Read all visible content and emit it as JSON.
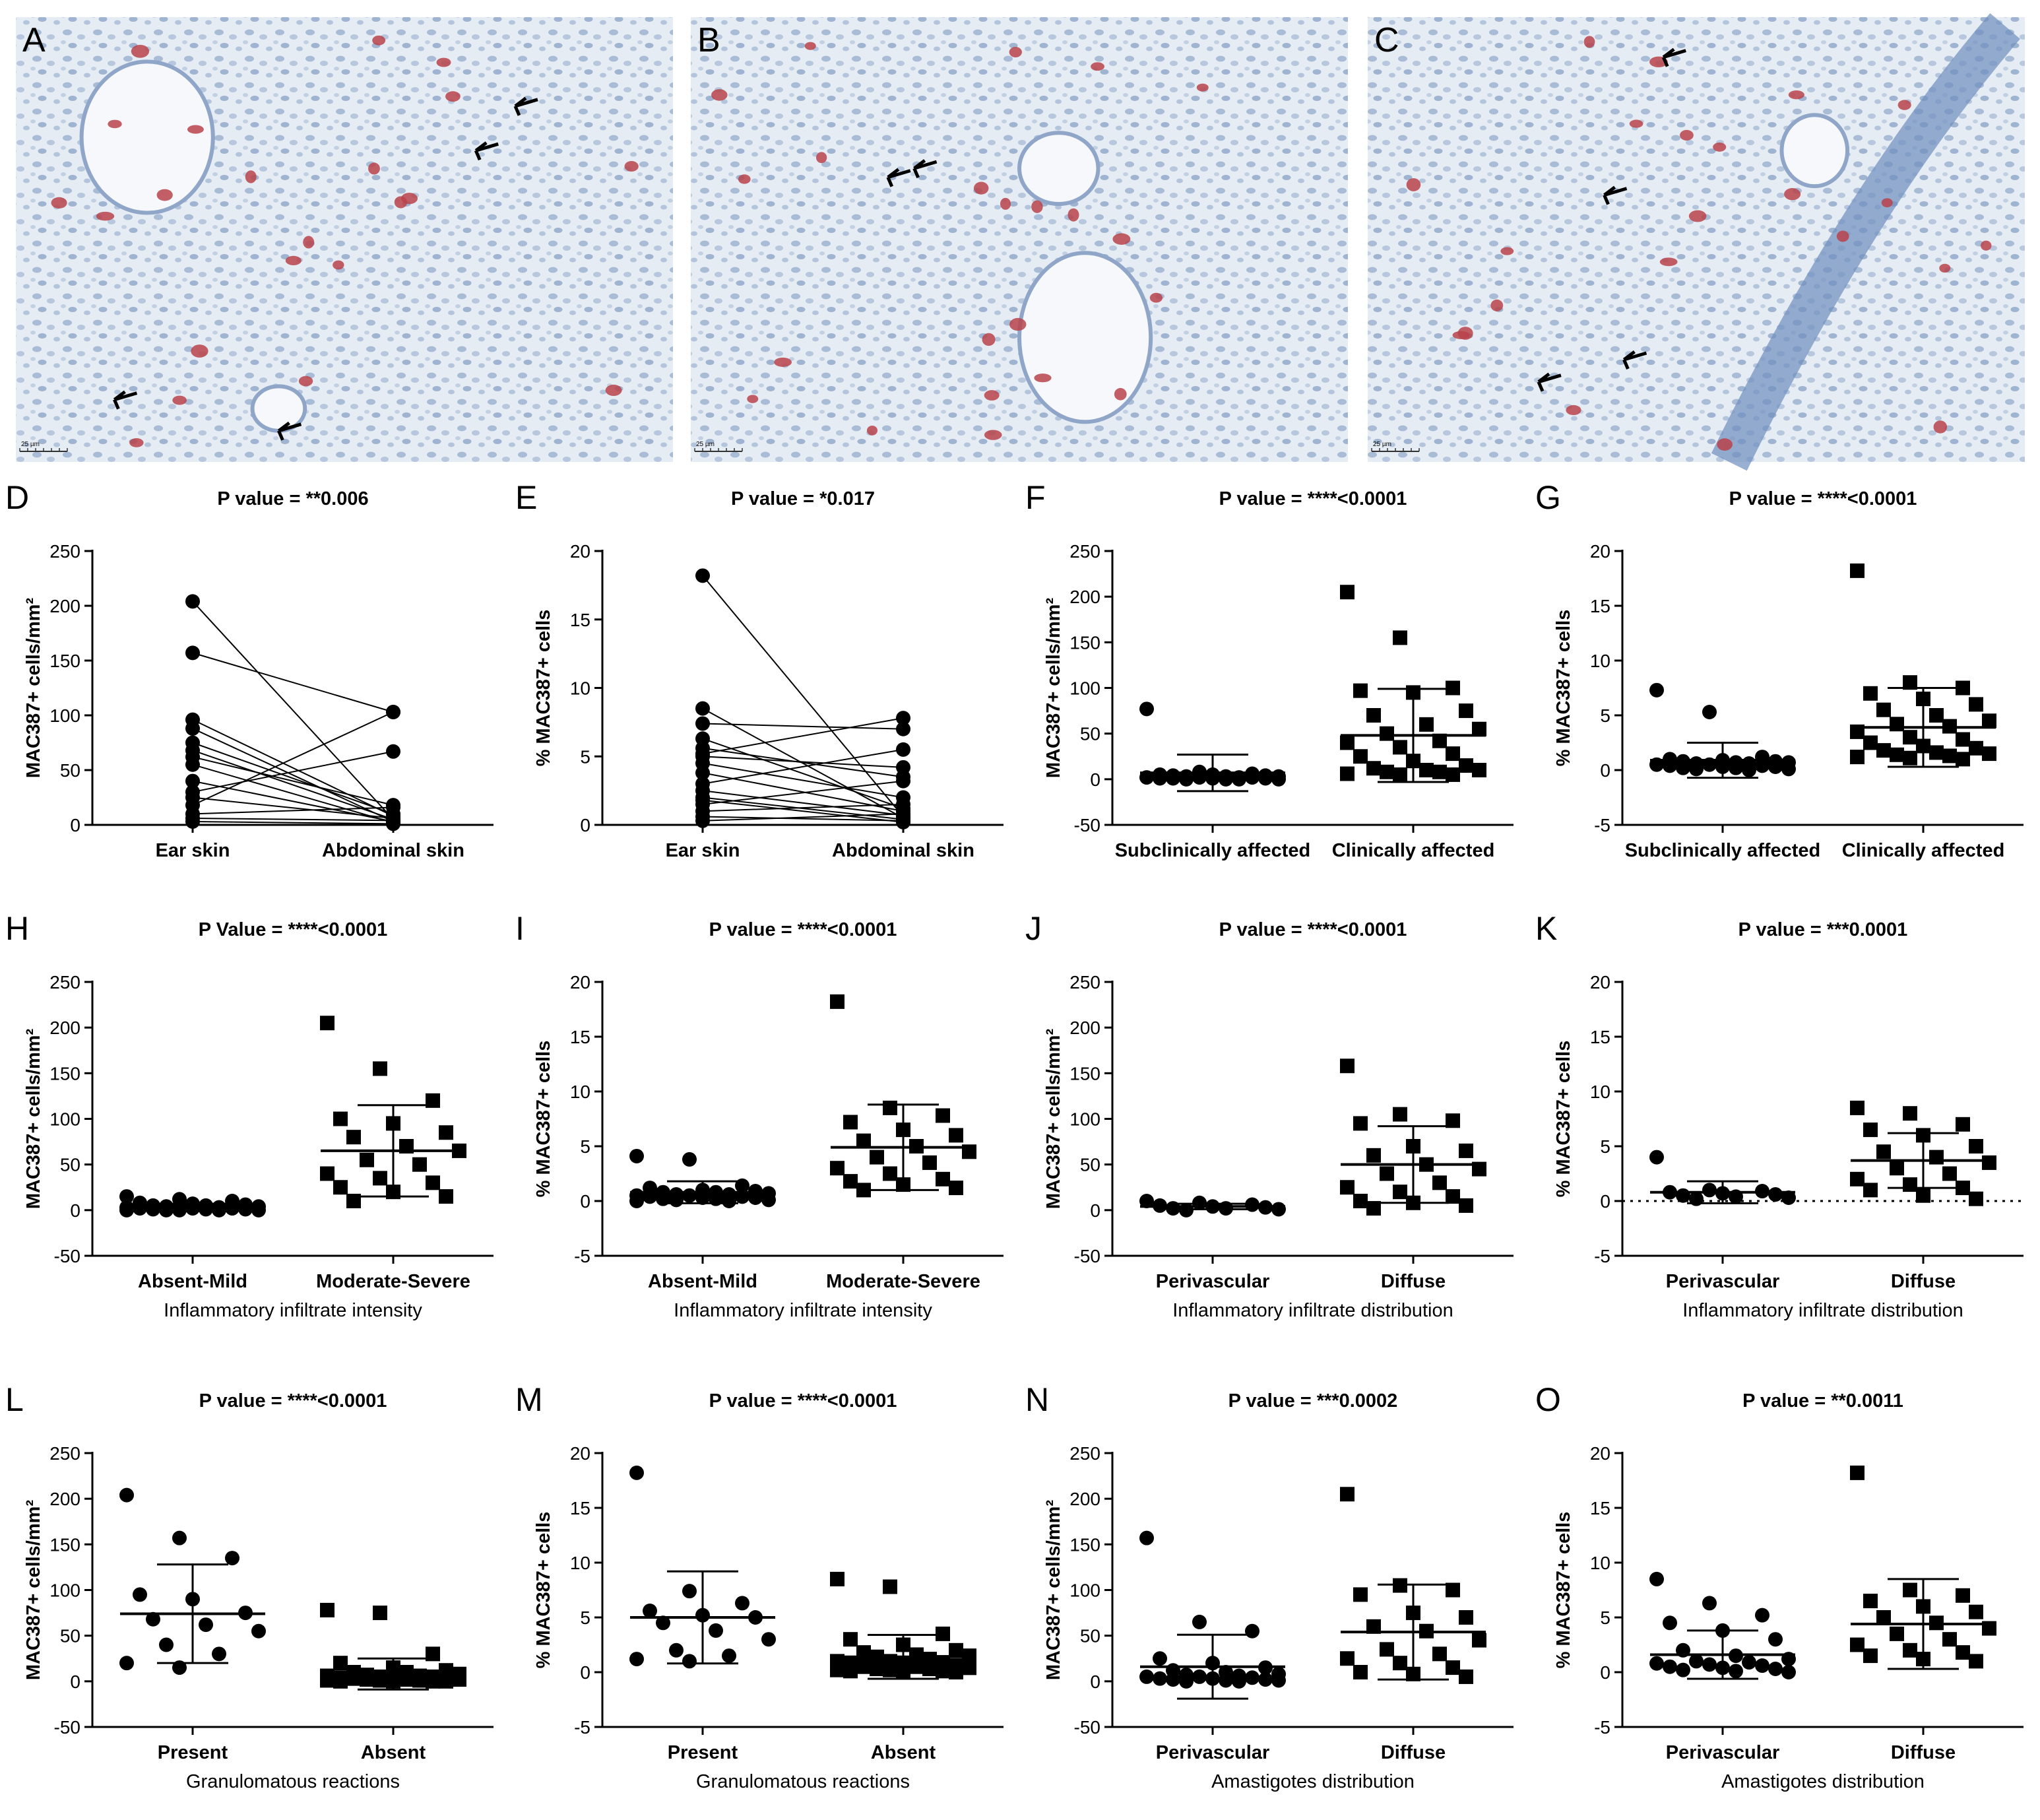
{
  "micrographs": [
    {
      "letter": "A",
      "scalebar": "25 µm"
    },
    {
      "letter": "B",
      "scalebar": "25 µm"
    },
    {
      "letter": "C",
      "scalebar": "25 µm"
    }
  ],
  "colors": {
    "marker": "#000000",
    "stain_red": "#b8434a",
    "tissue_blue": "#a9bcd6",
    "background": "#e9eef5"
  },
  "chart_data": [
    {
      "letter": "D",
      "type": "paired",
      "title": "P value = **0.006",
      "ylabel": "MAC387+ cells/mm²",
      "ylim": [
        0,
        250
      ],
      "yticks": [
        0,
        50,
        100,
        150,
        200,
        250
      ],
      "xlabel": "",
      "categories": [
        "Ear skin",
        "Abdominal skin"
      ],
      "marker": "circle",
      "pairs": [
        [
          204,
          5
        ],
        [
          157,
          103
        ],
        [
          96,
          8
        ],
        [
          88,
          3
        ],
        [
          75,
          10
        ],
        [
          68,
          5
        ],
        [
          62,
          18
        ],
        [
          55,
          2
        ],
        [
          40,
          3
        ],
        [
          30,
          67
        ],
        [
          25,
          6
        ],
        [
          18,
          103
        ],
        [
          10,
          16
        ],
        [
          6,
          4
        ],
        [
          3,
          1
        ]
      ]
    },
    {
      "letter": "E",
      "type": "paired",
      "title": "P value = *0.017",
      "ylabel": "% MAC387+ cells",
      "ylim": [
        0,
        20
      ],
      "yticks": [
        0,
        5,
        10,
        15,
        20
      ],
      "xlabel": "",
      "categories": [
        "Ear skin",
        "Abdominal skin"
      ],
      "marker": "circle",
      "pairs": [
        [
          18.2,
          0.6
        ],
        [
          8.5,
          0.5
        ],
        [
          7.4,
          7.0
        ],
        [
          6.3,
          1.2
        ],
        [
          5.6,
          3.5
        ],
        [
          5.2,
          7.8
        ],
        [
          5.0,
          4.2
        ],
        [
          4.5,
          2.0
        ],
        [
          3.8,
          1.0
        ],
        [
          3.0,
          5.5
        ],
        [
          2.0,
          0.4
        ],
        [
          1.5,
          3.2
        ],
        [
          1.0,
          1.5
        ],
        [
          0.6,
          0.3
        ],
        [
          0.3,
          0.8
        ],
        [
          1.8,
          0.2
        ],
        [
          2.5,
          0.7
        ]
      ]
    },
    {
      "letter": "F",
      "type": "dot",
      "title": "P value = ****<0.0001",
      "ylabel": "MAC387+ cells/mm²",
      "ylim": [
        -50,
        250
      ],
      "yticks": [
        -50,
        0,
        50,
        100,
        150,
        200,
        250
      ],
      "xlabel": "",
      "categories": [
        "Subclinically affected",
        "Clinically affected"
      ],
      "groups": [
        {
          "marker": "circle",
          "mean": 7,
          "sd": 20,
          "values": [
            77,
            8,
            6,
            5,
            5,
            4,
            4,
            3,
            3,
            3,
            2,
            2,
            2,
            2,
            1,
            1,
            1,
            1,
            0,
            0,
            0,
            0
          ]
        },
        {
          "marker": "square",
          "mean": 48,
          "sd": 51,
          "values": [
            205,
            155,
            100,
            97,
            95,
            75,
            70,
            60,
            55,
            50,
            42,
            40,
            35,
            28,
            25,
            20,
            15,
            12,
            10,
            10,
            8,
            8,
            6,
            5,
            5
          ]
        }
      ]
    },
    {
      "letter": "G",
      "type": "dot",
      "title": "P value = ****<0.0001",
      "ylabel": "% MAC387+ cells",
      "ylim": [
        -5,
        20
      ],
      "yticks": [
        -5,
        0,
        5,
        10,
        15,
        20
      ],
      "xlabel": "",
      "categories": [
        "Subclinically affected",
        "Clinically affected"
      ],
      "groups": [
        {
          "marker": "circle",
          "mean": 0.9,
          "sd": 1.6,
          "values": [
            7.3,
            5.3,
            1.2,
            1.0,
            0.9,
            0.8,
            0.8,
            0.7,
            0.7,
            0.6,
            0.6,
            0.5,
            0.5,
            0.4,
            0.4,
            0.3,
            0.3,
            0.2,
            0.2,
            0.1,
            0.1,
            0.0
          ]
        },
        {
          "marker": "square",
          "mean": 3.9,
          "sd": 3.6,
          "values": [
            18.2,
            8.0,
            7.5,
            7.0,
            6.5,
            6.0,
            5.5,
            5.0,
            4.5,
            4.2,
            4.0,
            3.5,
            3.0,
            2.8,
            2.5,
            2.2,
            2.0,
            1.8,
            1.6,
            1.5,
            1.4,
            1.3,
            1.2,
            1.1,
            1.0
          ]
        }
      ]
    },
    {
      "letter": "H",
      "type": "dot",
      "title": "P Value = ****<0.0001",
      "ylabel": "MAC387+ cells/mm²",
      "ylim": [
        -50,
        250
      ],
      "yticks": [
        -50,
        0,
        50,
        100,
        150,
        200,
        250
      ],
      "xlabel": "Inflammatory infiltrate intensity",
      "categories": [
        "Absent-Mild",
        "Moderate-Severe"
      ],
      "groups": [
        {
          "marker": "circle",
          "mean": 3,
          "sd": 4,
          "values": [
            15,
            12,
            10,
            8,
            7,
            6,
            5,
            5,
            4,
            4,
            3,
            3,
            3,
            2,
            2,
            2,
            1,
            1,
            1,
            0,
            0,
            0,
            0,
            0
          ]
        },
        {
          "marker": "square",
          "mean": 65,
          "sd": 50,
          "values": [
            205,
            155,
            120,
            100,
            95,
            85,
            80,
            70,
            65,
            55,
            50,
            40,
            35,
            30,
            25,
            20,
            15,
            10
          ]
        }
      ]
    },
    {
      "letter": "I",
      "type": "dot",
      "title": "P value = ****<0.0001",
      "ylabel": "% MAC387+ cells",
      "ylim": [
        -5,
        20
      ],
      "yticks": [
        -5,
        0,
        5,
        10,
        15,
        20
      ],
      "xlabel": "Inflammatory infiltrate intensity",
      "categories": [
        "Absent-Mild",
        "Moderate-Severe"
      ],
      "groups": [
        {
          "marker": "circle",
          "mean": 0.8,
          "sd": 1.0,
          "values": [
            4.1,
            3.8,
            1.4,
            1.2,
            1.0,
            0.9,
            0.8,
            0.8,
            0.7,
            0.6,
            0.6,
            0.5,
            0.5,
            0.4,
            0.4,
            0.3,
            0.3,
            0.2,
            0.2,
            0.1,
            0.1,
            0.0,
            0.0
          ]
        },
        {
          "marker": "square",
          "mean": 4.9,
          "sd": 3.9,
          "values": [
            18.2,
            8.5,
            7.8,
            7.2,
            6.5,
            6.0,
            5.5,
            5.0,
            4.5,
            4.0,
            3.5,
            3.0,
            2.5,
            2.0,
            1.8,
            1.5,
            1.2,
            1.0
          ]
        }
      ]
    },
    {
      "letter": "J",
      "type": "dot",
      "title": "P value = ****<0.0001",
      "ylabel": "MAC387+ cells/mm²",
      "ylim": [
        -50,
        250
      ],
      "yticks": [
        -50,
        0,
        50,
        100,
        150,
        200,
        250
      ],
      "xlabel": "Inflammatory infiltrate distribution",
      "categories": [
        "Perivascular",
        "Diffuse"
      ],
      "groups": [
        {
          "marker": "circle",
          "mean": 4,
          "sd": 3,
          "values": [
            10,
            8,
            6,
            5,
            4,
            3,
            2,
            2,
            1,
            0
          ]
        },
        {
          "marker": "square",
          "mean": 50,
          "sd": 42,
          "values": [
            158,
            105,
            98,
            95,
            70,
            65,
            60,
            50,
            45,
            40,
            30,
            25,
            20,
            15,
            10,
            8,
            5,
            2
          ]
        }
      ]
    },
    {
      "letter": "K",
      "type": "dot",
      "title": "P value = ***0.0001",
      "ylabel": "% MAC387+ cells",
      "ylim": [
        -5,
        20
      ],
      "yticks": [
        -5,
        0,
        5,
        10,
        15,
        20
      ],
      "xlabel": "Inflammatory infiltrate distribution",
      "categories": [
        "Perivascular",
        "Diffuse"
      ],
      "zero_line": true,
      "groups": [
        {
          "marker": "circle",
          "mean": 0.8,
          "sd": 1.0,
          "values": [
            4.0,
            1.0,
            0.9,
            0.8,
            0.7,
            0.6,
            0.5,
            0.4,
            0.3,
            0.2
          ]
        },
        {
          "marker": "square",
          "mean": 3.7,
          "sd": 2.5,
          "values": [
            8.5,
            8.0,
            7.0,
            6.5,
            6.0,
            5.0,
            4.5,
            4.0,
            3.5,
            3.0,
            2.5,
            2.0,
            1.5,
            1.2,
            1.0,
            0.5,
            0.2
          ]
        }
      ]
    },
    {
      "letter": "L",
      "type": "dot",
      "title": "P value = ****<0.0001",
      "ylabel": "MAC387+ cells/mm²",
      "ylim": [
        -50,
        250
      ],
      "yticks": [
        -50,
        0,
        50,
        100,
        150,
        200,
        250
      ],
      "xlabel": "Granulomatous reactions",
      "categories": [
        "Present",
        "Absent"
      ],
      "groups": [
        {
          "marker": "circle",
          "mean": 74,
          "sd": 54,
          "values": [
            204,
            157,
            135,
            95,
            90,
            75,
            68,
            62,
            55,
            40,
            30,
            20,
            15
          ]
        },
        {
          "marker": "square",
          "mean": 8,
          "sd": 17,
          "values": [
            78,
            75,
            30,
            20,
            15,
            12,
            10,
            10,
            8,
            7,
            6,
            6,
            5,
            5,
            4,
            4,
            3,
            3,
            2,
            2,
            2,
            1,
            1,
            1,
            0,
            0,
            0,
            0
          ]
        }
      ]
    },
    {
      "letter": "M",
      "type": "dot",
      "title": "P value = ****<0.0001",
      "ylabel": "% MAC387+ cells",
      "ylim": [
        -5,
        20
      ],
      "yticks": [
        -5,
        0,
        5,
        10,
        15,
        20
      ],
      "xlabel": "Granulomatous reactions",
      "categories": [
        "Present",
        "Absent"
      ],
      "groups": [
        {
          "marker": "circle",
          "mean": 5.0,
          "sd": 4.2,
          "values": [
            18.2,
            7.4,
            6.3,
            5.6,
            5.2,
            5.0,
            4.5,
            3.8,
            3.0,
            2.0,
            1.5,
            1.2,
            1.0
          ]
        },
        {
          "marker": "square",
          "mean": 1.4,
          "sd": 2.0,
          "values": [
            8.5,
            7.8,
            3.5,
            3.0,
            2.5,
            2.0,
            1.8,
            1.6,
            1.5,
            1.4,
            1.2,
            1.0,
            1.0,
            0.9,
            0.8,
            0.7,
            0.6,
            0.5,
            0.5,
            0.4,
            0.3,
            0.3,
            0.2,
            0.2,
            0.1,
            0.1,
            0.0,
            0.0
          ]
        }
      ]
    },
    {
      "letter": "N",
      "type": "dot",
      "title": "P value = ***0.0002",
      "ylabel": "MAC387+ cells/mm²",
      "ylim": [
        -50,
        250
      ],
      "yticks": [
        -50,
        0,
        50,
        100,
        150,
        200,
        250
      ],
      "xlabel": "Amastigotes distribution",
      "categories": [
        "Perivascular",
        "Diffuse"
      ],
      "groups": [
        {
          "marker": "circle",
          "mean": 16,
          "sd": 35,
          "values": [
            157,
            65,
            55,
            25,
            20,
            15,
            12,
            10,
            8,
            7,
            6,
            5,
            5,
            4,
            3,
            3,
            2,
            2,
            1,
            1,
            0,
            0
          ]
        },
        {
          "marker": "square",
          "mean": 54,
          "sd": 52,
          "values": [
            205,
            105,
            100,
            95,
            75,
            70,
            60,
            55,
            45,
            35,
            30,
            25,
            20,
            15,
            10,
            8,
            5
          ]
        }
      ]
    },
    {
      "letter": "O",
      "type": "dot",
      "title": "P value = **0.0011",
      "ylabel": "% MAC387+ cells",
      "ylim": [
        -5,
        20
      ],
      "yticks": [
        -5,
        0,
        5,
        10,
        15,
        20
      ],
      "xlabel": "Amastigotes distribution",
      "categories": [
        "Perivascular",
        "Diffuse"
      ],
      "groups": [
        {
          "marker": "circle",
          "mean": 1.6,
          "sd": 2.2,
          "values": [
            8.5,
            6.3,
            5.2,
            4.5,
            3.8,
            3.0,
            2.0,
            1.5,
            1.2,
            1.0,
            0.9,
            0.8,
            0.7,
            0.6,
            0.5,
            0.4,
            0.3,
            0.2,
            0.1,
            0.0
          ]
        },
        {
          "marker": "square",
          "mean": 4.4,
          "sd": 4.1,
          "values": [
            18.2,
            7.5,
            7.0,
            6.5,
            6.0,
            5.5,
            5.0,
            4.5,
            4.0,
            3.5,
            3.0,
            2.5,
            2.0,
            1.8,
            1.5,
            1.2,
            1.0
          ]
        }
      ]
    }
  ]
}
